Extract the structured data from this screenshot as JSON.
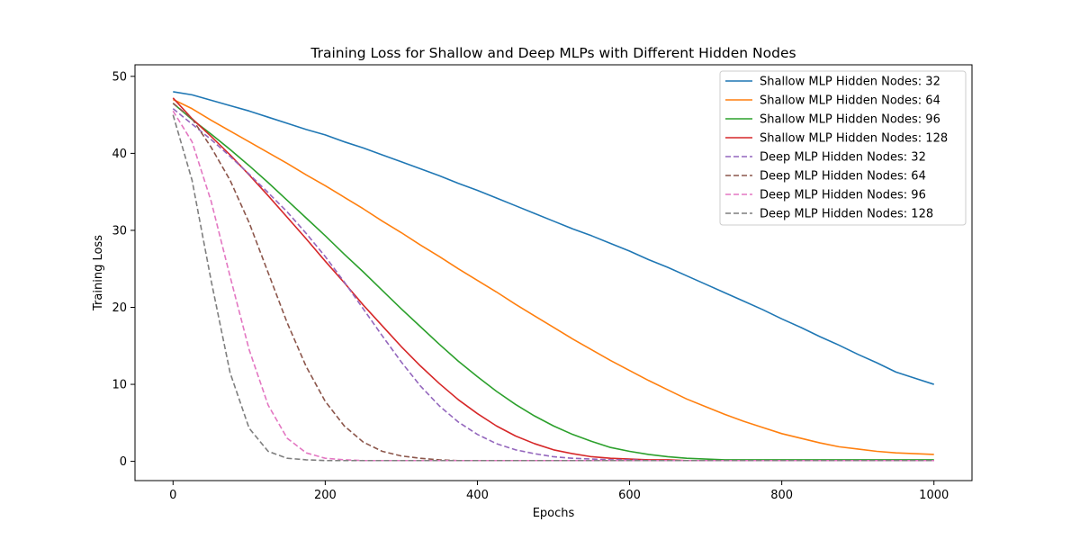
{
  "chart_data": {
    "type": "line",
    "title": "Training Loss for Shallow and Deep MLPs with Different Hidden Nodes",
    "xlabel": "Epochs",
    "ylabel": "Training Loss",
    "xlim": [
      -50,
      1050
    ],
    "ylim": [
      -2.5,
      51.5
    ],
    "xticks": [
      0,
      200,
      400,
      600,
      800,
      1000
    ],
    "yticks": [
      0,
      10,
      20,
      30,
      40,
      50
    ],
    "grid": false,
    "legend_position": "top-right",
    "x": [
      0,
      25,
      50,
      75,
      100,
      125,
      150,
      175,
      200,
      225,
      250,
      275,
      300,
      325,
      350,
      375,
      400,
      425,
      450,
      475,
      500,
      525,
      550,
      575,
      600,
      625,
      650,
      675,
      700,
      725,
      750,
      775,
      800,
      825,
      850,
      875,
      900,
      925,
      950,
      975,
      1000
    ],
    "series": [
      {
        "name": "Shallow MLP Hidden Nodes: 32",
        "color": "#1f77b4",
        "dash": "solid",
        "values": [
          48.0,
          47.6,
          46.9,
          46.2,
          45.5,
          44.7,
          43.9,
          43.1,
          42.4,
          41.5,
          40.7,
          39.8,
          38.9,
          38.0,
          37.1,
          36.1,
          35.2,
          34.2,
          33.2,
          32.2,
          31.2,
          30.2,
          29.3,
          28.3,
          27.3,
          26.2,
          25.2,
          24.1,
          23.0,
          21.9,
          20.8,
          19.7,
          18.5,
          17.4,
          16.2,
          15.1,
          13.9,
          12.8,
          11.6,
          10.8,
          10.0
        ]
      },
      {
        "name": "Shallow MLP Hidden Nodes: 64",
        "color": "#ff7f0e",
        "dash": "solid",
        "values": [
          47.0,
          45.8,
          44.3,
          42.9,
          41.5,
          40.1,
          38.7,
          37.2,
          35.8,
          34.3,
          32.8,
          31.2,
          29.7,
          28.1,
          26.6,
          25.0,
          23.5,
          22.0,
          20.4,
          18.9,
          17.4,
          15.9,
          14.5,
          13.1,
          11.8,
          10.5,
          9.3,
          8.1,
          7.1,
          6.1,
          5.2,
          4.4,
          3.6,
          3.0,
          2.4,
          1.9,
          1.6,
          1.3,
          1.1,
          1.0,
          0.9
        ]
      },
      {
        "name": "Shallow MLP Hidden Nodes: 96",
        "color": "#2ca02c",
        "dash": "solid",
        "values": [
          46.5,
          44.4,
          42.5,
          40.5,
          38.4,
          36.2,
          33.9,
          31.6,
          29.3,
          26.9,
          24.6,
          22.2,
          19.8,
          17.5,
          15.2,
          13.0,
          11.0,
          9.1,
          7.4,
          5.9,
          4.6,
          3.5,
          2.6,
          1.8,
          1.3,
          0.9,
          0.6,
          0.4,
          0.3,
          0.2,
          0.2,
          0.2,
          0.2,
          0.2,
          0.2,
          0.2,
          0.2,
          0.2,
          0.2,
          0.2,
          0.2
        ]
      },
      {
        "name": "Shallow MLP Hidden Nodes: 128",
        "color": "#d62728",
        "dash": "solid",
        "values": [
          47.2,
          44.5,
          42.2,
          39.8,
          37.2,
          34.5,
          31.7,
          28.9,
          26.0,
          23.2,
          20.3,
          17.6,
          14.9,
          12.4,
          10.1,
          8.0,
          6.2,
          4.6,
          3.3,
          2.3,
          1.5,
          1.0,
          0.6,
          0.4,
          0.3,
          0.2,
          0.2,
          0.1,
          0.1,
          0.1,
          0.1,
          0.1,
          0.1,
          0.1,
          0.1,
          0.1,
          0.1,
          0.1,
          0.1,
          0.1,
          0.1
        ]
      },
      {
        "name": "Deep MLP Hidden Nodes: 32",
        "color": "#9467bd",
        "dash": "dashed",
        "values": [
          45.8,
          43.8,
          41.8,
          39.6,
          37.3,
          34.9,
          32.4,
          29.6,
          26.6,
          23.3,
          19.8,
          16.3,
          12.9,
          9.8,
          7.2,
          5.1,
          3.5,
          2.3,
          1.5,
          1.0,
          0.6,
          0.4,
          0.3,
          0.2,
          0.2,
          0.1,
          0.1,
          0.1,
          0.1,
          0.1,
          0.1,
          0.1,
          0.1,
          0.1,
          0.1,
          0.1,
          0.1,
          0.1,
          0.1,
          0.1,
          0.1
        ]
      },
      {
        "name": "Deep MLP Hidden Nodes: 64",
        "color": "#8c564b",
        "dash": "dashed",
        "values": [
          46.5,
          44.5,
          40.8,
          36.5,
          31.0,
          24.5,
          18.0,
          12.3,
          7.8,
          4.6,
          2.5,
          1.3,
          0.7,
          0.4,
          0.2,
          0.1,
          0.1,
          0.1,
          0.1,
          0.1,
          0.1,
          0.1,
          0.1,
          0.1,
          0.1,
          0.1,
          0.1,
          0.1,
          0.1,
          0.1,
          0.1,
          0.1,
          0.1,
          0.1,
          0.1,
          0.1,
          0.1,
          0.1,
          0.1,
          0.1,
          0.1
        ]
      },
      {
        "name": "Deep MLP Hidden Nodes: 96",
        "color": "#e377c2",
        "dash": "dashed",
        "values": [
          45.5,
          41.5,
          33.8,
          24.0,
          14.5,
          7.3,
          3.0,
          1.1,
          0.4,
          0.2,
          0.1,
          0.1,
          0.1,
          0.1,
          0.1,
          0.1,
          0.1,
          0.1,
          0.1,
          0.1,
          0.1,
          0.1,
          0.1,
          0.1,
          0.1,
          0.1,
          0.1,
          0.1,
          0.1,
          0.1,
          0.1,
          0.1,
          0.1,
          0.1,
          0.1,
          0.1,
          0.1,
          0.1,
          0.1,
          0.1,
          0.1
        ]
      },
      {
        "name": "Deep MLP Hidden Nodes: 128",
        "color": "#7f7f7f",
        "dash": "dashed",
        "values": [
          45.0,
          36.5,
          23.5,
          11.5,
          4.3,
          1.3,
          0.4,
          0.2,
          0.1,
          0.1,
          0.1,
          0.1,
          0.1,
          0.1,
          0.1,
          0.1,
          0.1,
          0.1,
          0.1,
          0.1,
          0.1,
          0.1,
          0.1,
          0.1,
          0.1,
          0.1,
          0.1,
          0.1,
          0.1,
          0.1,
          0.1,
          0.1,
          0.1,
          0.1,
          0.1,
          0.1,
          0.1,
          0.1,
          0.1,
          0.1,
          0.1
        ]
      }
    ]
  }
}
